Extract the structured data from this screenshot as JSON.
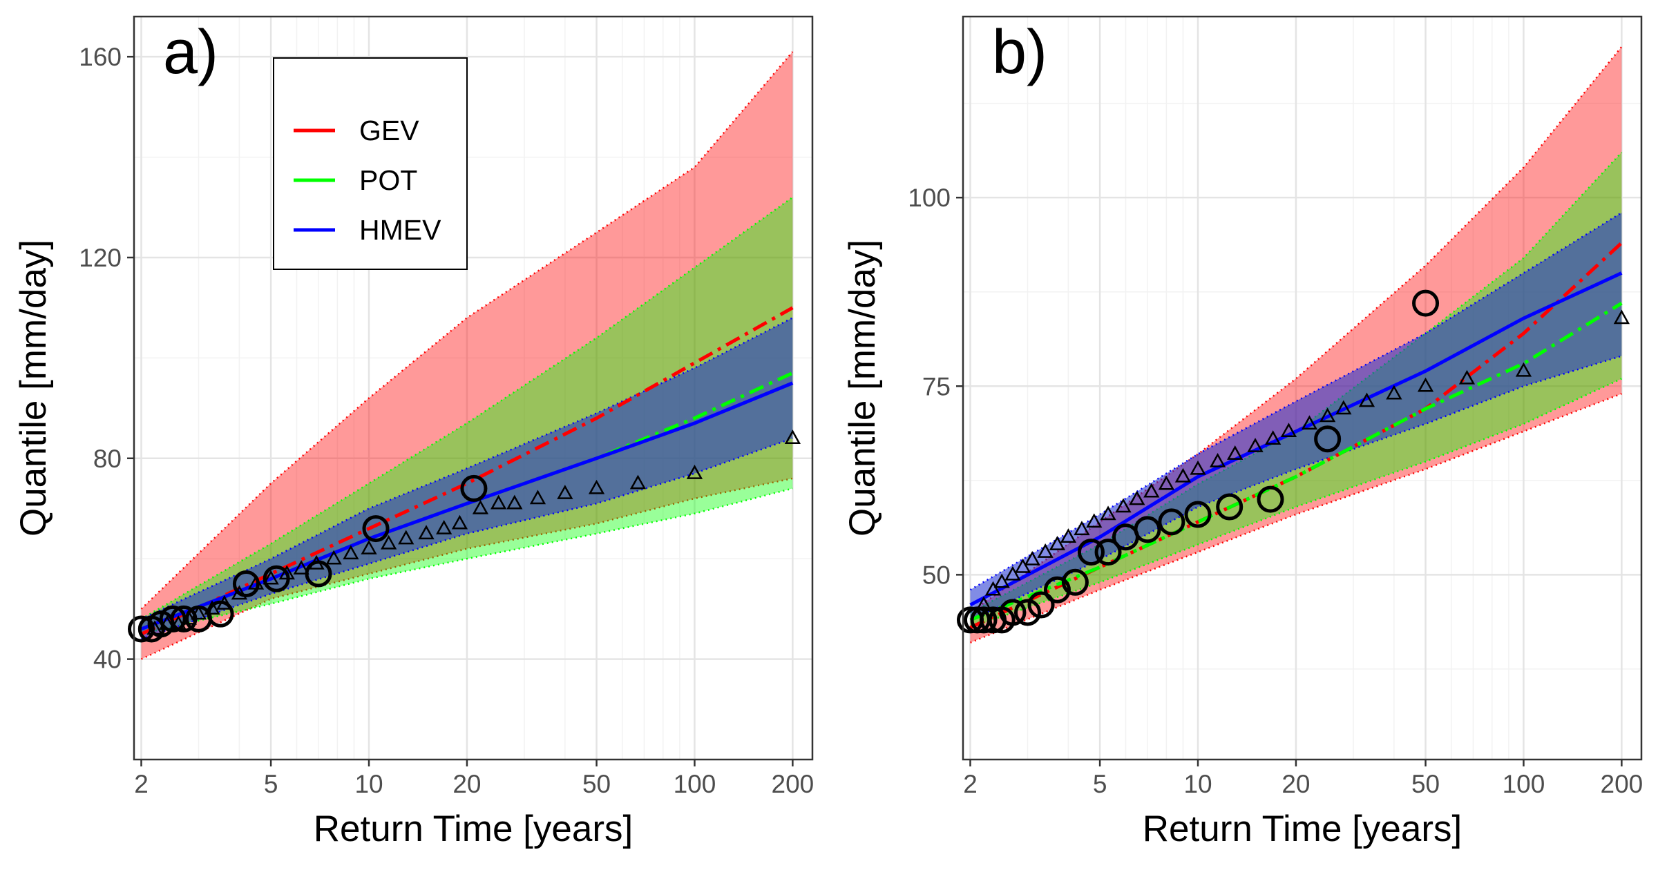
{
  "chart_data": [
    {
      "type": "line",
      "panel_label": "a)",
      "xlabel": "Return Time [years]",
      "ylabel": "Quantile [mm/day]",
      "x_scale": "log",
      "xlim": [
        1.9,
        230
      ],
      "ylim": [
        20,
        168
      ],
      "x_ticks": [
        2,
        5,
        10,
        20,
        50,
        100,
        200
      ],
      "y_ticks": [
        40,
        80,
        120,
        160
      ],
      "legend": {
        "placement": "top-left",
        "entries": [
          "GEV",
          "POT",
          "HMEV"
        ]
      },
      "series": [
        {
          "name": "GEV",
          "color": "#ff0000",
          "line": "dashdot",
          "x": [
            2,
            5,
            10,
            20,
            50,
            100,
            200
          ],
          "values": [
            45,
            57,
            66,
            75,
            88,
            99,
            110
          ],
          "band_low": [
            40,
            52,
            57,
            62,
            67,
            72,
            76
          ],
          "band_high": [
            50,
            75,
            92,
            108,
            125,
            138,
            161
          ]
        },
        {
          "name": "POT",
          "color": "#00ff00",
          "line": "dashdot",
          "x": [
            2,
            5,
            10,
            20,
            50,
            100,
            200
          ],
          "values": [
            46,
            56,
            64,
            71,
            80,
            88,
            97
          ],
          "band_low": [
            45,
            51,
            56,
            60,
            65,
            69,
            74
          ],
          "band_high": [
            48,
            63,
            75,
            87,
            104,
            118,
            132
          ]
        },
        {
          "name": "HMEV",
          "color": "#0000ff",
          "line": "solid",
          "x": [
            2,
            5,
            10,
            20,
            50,
            100,
            200
          ],
          "values": [
            46,
            56,
            64,
            71,
            80,
            87,
            95
          ],
          "band_low": [
            44,
            53,
            59,
            65,
            71,
            77,
            84
          ],
          "band_high": [
            48,
            60,
            70,
            78,
            89,
            98,
            108
          ]
        }
      ],
      "observed_circles": {
        "x": [
          2.0,
          2.15,
          2.3,
          2.5,
          2.7,
          3.0,
          3.5,
          4.2,
          5.2,
          7.0,
          10.5,
          21
        ],
        "y": [
          46,
          46,
          47,
          48,
          48,
          48,
          49,
          55,
          56,
          57,
          66,
          74
        ]
      },
      "empirical_triangles": {
        "x": [
          2.2,
          2.4,
          2.6,
          2.8,
          3.0,
          3.3,
          3.6,
          4.0,
          4.5,
          5.0,
          5.6,
          6.2,
          6.9,
          7.8,
          8.8,
          10.0,
          11.5,
          13,
          15,
          17,
          19,
          22,
          25,
          28,
          33,
          40,
          50,
          67,
          100,
          200
        ],
        "y": [
          46,
          47,
          47,
          48,
          49,
          50,
          51,
          53,
          55,
          56,
          57,
          58,
          59,
          60,
          61,
          62,
          63,
          64,
          65,
          66,
          67,
          70,
          71,
          71,
          72,
          73,
          74,
          75,
          77,
          84
        ]
      }
    },
    {
      "type": "line",
      "panel_label": "b)",
      "xlabel": "Return Time [years]",
      "ylabel": "Quantile [mm/day]",
      "x_scale": "log",
      "xlim": [
        1.9,
        230
      ],
      "ylim": [
        25.5,
        124
      ],
      "x_ticks": [
        2,
        5,
        10,
        20,
        50,
        100,
        200
      ],
      "y_ticks": [
        50,
        75,
        100
      ],
      "series": [
        {
          "name": "GEV",
          "color": "#ff0000",
          "line": "dashdot",
          "x": [
            2,
            5,
            10,
            20,
            50,
            100,
            200
          ],
          "values": [
            43,
            51,
            57,
            63,
            72,
            82,
            94
          ],
          "band_low": [
            41,
            48,
            53,
            58,
            64,
            69,
            74
          ],
          "band_high": [
            45,
            57,
            66,
            76,
            91,
            104,
            120
          ]
        },
        {
          "name": "POT",
          "color": "#00ff00",
          "line": "dashdot",
          "x": [
            2,
            5,
            10,
            20,
            50,
            100,
            200
          ],
          "values": [
            44,
            51,
            57,
            63,
            72,
            78,
            86
          ],
          "band_low": [
            43,
            49,
            54,
            59,
            65,
            70,
            76
          ],
          "band_high": [
            45,
            54,
            62,
            69,
            82,
            92,
            106
          ]
        },
        {
          "name": "HMEV",
          "color": "#0000ff",
          "line": "solid",
          "x": [
            2,
            5,
            10,
            20,
            50,
            100,
            200
          ],
          "values": [
            46,
            55,
            63,
            69,
            77,
            84,
            90
          ],
          "band_low": [
            44,
            52,
            59,
            64,
            70,
            75,
            79
          ],
          "band_high": [
            48,
            58,
            66,
            73,
            82,
            90,
            98
          ]
        }
      ],
      "observed_circles": {
        "x": [
          2.0,
          2.1,
          2.2,
          2.35,
          2.5,
          2.7,
          3.0,
          3.3,
          3.7,
          4.2,
          4.7,
          5.3,
          6.0,
          7.0,
          8.3,
          10,
          12.5,
          16.7,
          25,
          50
        ],
        "y": [
          44,
          44,
          44,
          44,
          44,
          45,
          45,
          46,
          48,
          49,
          53,
          53,
          55,
          56,
          57,
          58,
          59,
          60,
          68,
          86
        ]
      },
      "empirical_triangles": {
        "x": [
          2.2,
          2.35,
          2.5,
          2.7,
          2.9,
          3.1,
          3.4,
          3.7,
          4.0,
          4.4,
          4.8,
          5.3,
          5.9,
          6.5,
          7.2,
          8.0,
          9.0,
          10,
          11.5,
          13,
          15,
          17,
          19,
          22,
          25,
          28,
          33,
          40,
          50,
          67,
          100,
          200
        ],
        "y": [
          46,
          48,
          49,
          50,
          51,
          52,
          53,
          54,
          55,
          56,
          57,
          58,
          59,
          60,
          61,
          62,
          63,
          64,
          65,
          66,
          67,
          68,
          69,
          70,
          71,
          72,
          73,
          74,
          75,
          76,
          77,
          84
        ]
      }
    }
  ]
}
